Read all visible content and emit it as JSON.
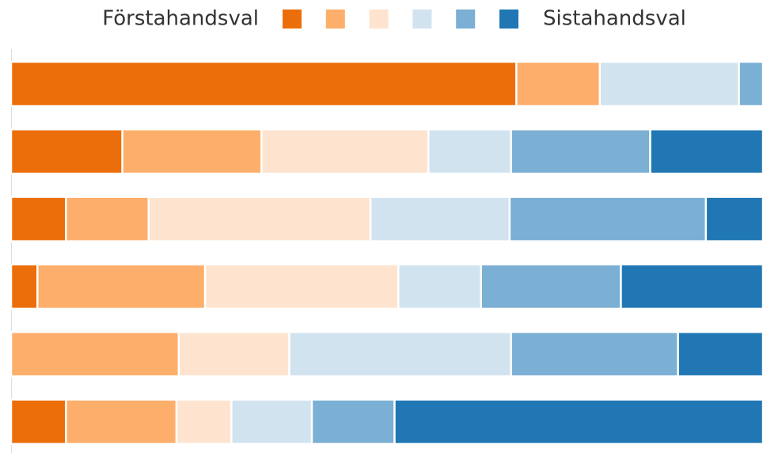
{
  "chart_data": {
    "type": "stacked-bar-horizontal",
    "legend_labels": [
      "Förstahandsval",
      "Sistahandsval"
    ],
    "categories": [
      null,
      null,
      null,
      null,
      null,
      null
    ],
    "xlim": [
      0,
      100
    ],
    "series": [
      {
        "color": "#ec6e0a",
        "values": [
          67.2,
          14.8,
          7.3,
          3.5,
          0,
          7.3
        ]
      },
      {
        "color": "#fdae6b",
        "values": [
          11.1,
          18.5,
          11,
          22.3,
          22.3,
          14.7
        ]
      },
      {
        "color": "#fee4cf",
        "values": [
          0,
          22.2,
          29.5,
          25.7,
          14.7,
          7.3
        ]
      },
      {
        "color": "#d2e3f0",
        "values": [
          18.5,
          11,
          18.5,
          11,
          29.5,
          10.7
        ]
      },
      {
        "color": "#7bafd4",
        "values": [
          3.2,
          18.5,
          26.1,
          18.6,
          22.2,
          11
        ]
      },
      {
        "color": "#2077b4",
        "values": [
          0,
          15,
          7.6,
          18.9,
          11.3,
          49
        ]
      }
    ]
  }
}
